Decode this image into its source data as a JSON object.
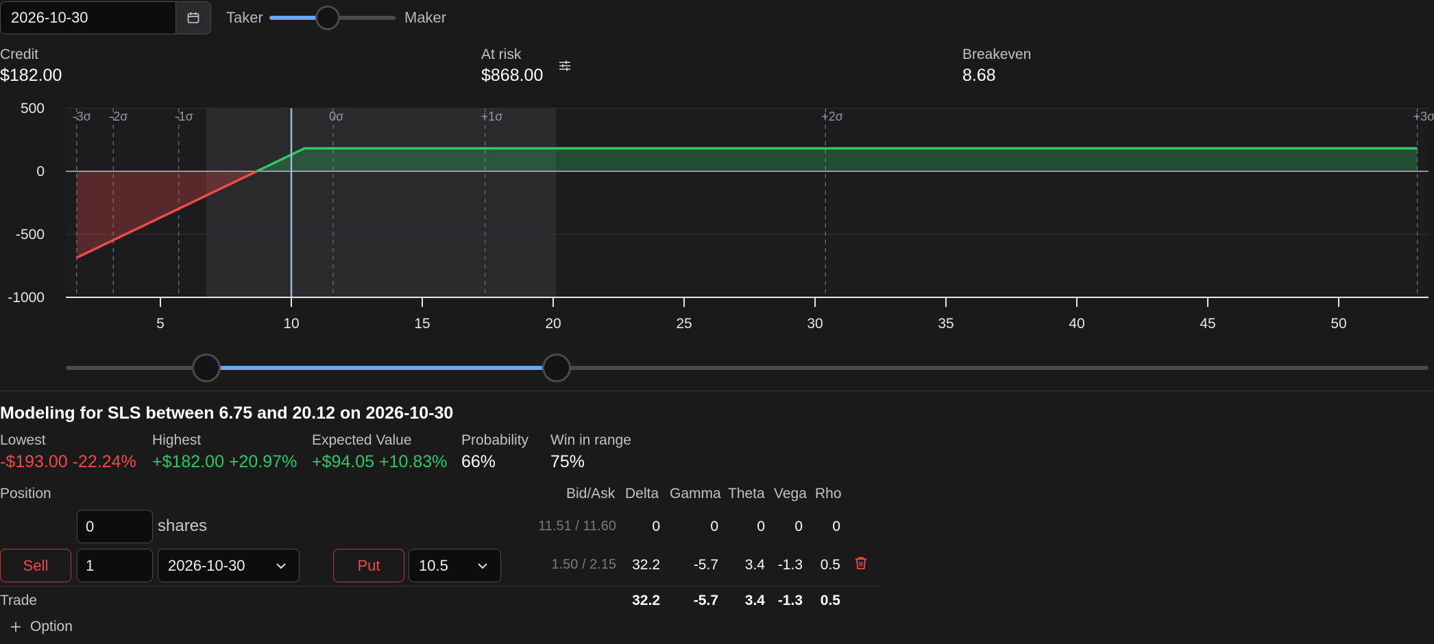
{
  "top": {
    "date_value": "2026-10-30",
    "taker_label": "Taker",
    "maker_label": "Maker",
    "taker_maker_level": 0.46
  },
  "stats": {
    "credit_label": "Credit",
    "credit_value": "$182.00",
    "at_risk_label": "At risk",
    "at_risk_value": "$868.00",
    "breakeven_label": "Breakeven",
    "breakeven_value": "8.68"
  },
  "chart_data": {
    "type": "area",
    "x": [
      1.8,
      8.68,
      10.5,
      53
    ],
    "y": [
      -686,
      0,
      182,
      182
    ],
    "ylim": [
      -1000,
      500
    ],
    "xlim": [
      1.8,
      53
    ],
    "y_ticks": [
      "500",
      "0",
      "-500",
      "-1000"
    ],
    "x_ticks": [
      "5",
      "10",
      "15",
      "20",
      "25",
      "30",
      "35",
      "40",
      "45",
      "50"
    ],
    "sigma_lines": [
      {
        "label": "-3σ",
        "x": 1.8
      },
      {
        "label": "-2σ",
        "x": 3.2
      },
      {
        "label": "-1σ",
        "x": 5.7
      },
      {
        "label": "0σ",
        "x": 11.6
      },
      {
        "label": "+1σ",
        "x": 17.4
      },
      {
        "label": "+2σ",
        "x": 30.4
      },
      {
        "label": "+3σ",
        "x": 53
      }
    ],
    "current_price": 10,
    "range_shade": [
      6.75,
      20.12
    ],
    "colors": {
      "profit": "#2ec866",
      "loss": "#ef4a4a"
    }
  },
  "range_slider": {
    "low_value": 6.75,
    "high_value": 20.12
  },
  "modeling": {
    "title": "Modeling for SLS between 6.75 and 20.12 on 2026-10-30",
    "lowest_label": "Lowest",
    "lowest_value": "-$193.00 -22.24%",
    "highest_label": "Highest",
    "highest_value": "+$182.00 +20.97%",
    "ev_label": "Expected Value",
    "ev_value": "+$94.05 +10.83%",
    "probability_label": "Probability",
    "probability_value": "66%",
    "win_label": "Win in range",
    "win_value": "75%"
  },
  "positions": {
    "header": {
      "position": "Position",
      "bidask": "Bid/Ask",
      "delta": "Delta",
      "gamma": "Gamma",
      "theta": "Theta",
      "vega": "Vega",
      "rho": "Rho"
    },
    "shares_row": {
      "qty": "0",
      "unit": "shares",
      "bidask": "11.51 / 11.60",
      "delta": "0",
      "gamma": "0",
      "theta": "0",
      "vega": "0",
      "rho": "0"
    },
    "option_row": {
      "side": "Sell",
      "qty": "1",
      "expiry": "2026-10-30",
      "type": "Put",
      "strike": "10.5",
      "bidask": "1.50 / 2.15",
      "delta": "32.2",
      "gamma": "-5.7",
      "theta": "3.4",
      "vega": "-1.3",
      "rho": "0.5"
    },
    "trade_row": {
      "label": "Trade",
      "delta": "32.2",
      "gamma": "-5.7",
      "theta": "3.4",
      "vega": "-1.3",
      "rho": "0.5"
    },
    "add_option_label": "Option"
  }
}
